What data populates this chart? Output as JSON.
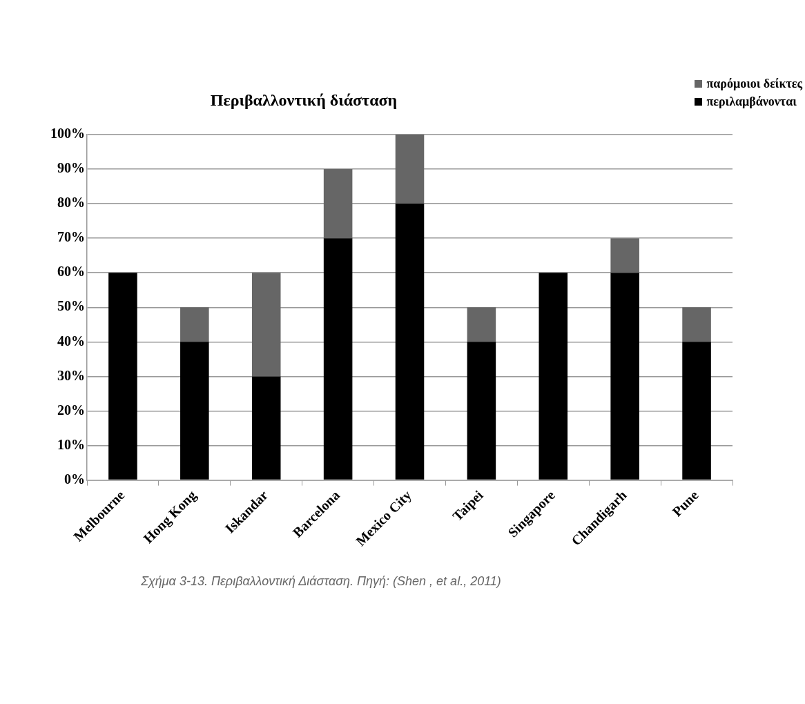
{
  "chart_data": {
    "type": "bar",
    "title": "Περιβαλλοντική διάσταση",
    "categories": [
      "Melbourne",
      "Hong Kong",
      "Iskandar",
      "Barcelona",
      "Mexico City",
      "Taipei",
      "Singapore",
      "Chandigarh",
      "Pune"
    ],
    "series": [
      {
        "name": "περιλαμβάνονται",
        "color": "#000000",
        "values": [
          60,
          40,
          30,
          70,
          80,
          40,
          60,
          60,
          40
        ]
      },
      {
        "name": "παρόμοιοι δείκτες",
        "color": "#666666",
        "values": [
          0,
          10,
          30,
          20,
          20,
          10,
          0,
          10,
          10
        ]
      }
    ],
    "stacked": true,
    "ylim": [
      0,
      100
    ],
    "yticks": [
      {
        "value": 0,
        "label": "0%"
      },
      {
        "value": 10,
        "label": "10%"
      },
      {
        "value": 20,
        "label": "20%"
      },
      {
        "value": 30,
        "label": "30%"
      },
      {
        "value": 40,
        "label": "40%"
      },
      {
        "value": 50,
        "label": "50%"
      },
      {
        "value": 60,
        "label": "60%"
      },
      {
        "value": 70,
        "label": "70%"
      },
      {
        "value": 80,
        "label": "80%"
      },
      {
        "value": 90,
        "label": "90%"
      },
      {
        "value": 100,
        "label": "100%"
      }
    ],
    "grid": "y",
    "legend": "top right",
    "annotations": [
      "Σχήμα 3-13. Περιβαλλοντική Διάσταση. Πηγή: (Shen , et al., 2011)"
    ]
  }
}
